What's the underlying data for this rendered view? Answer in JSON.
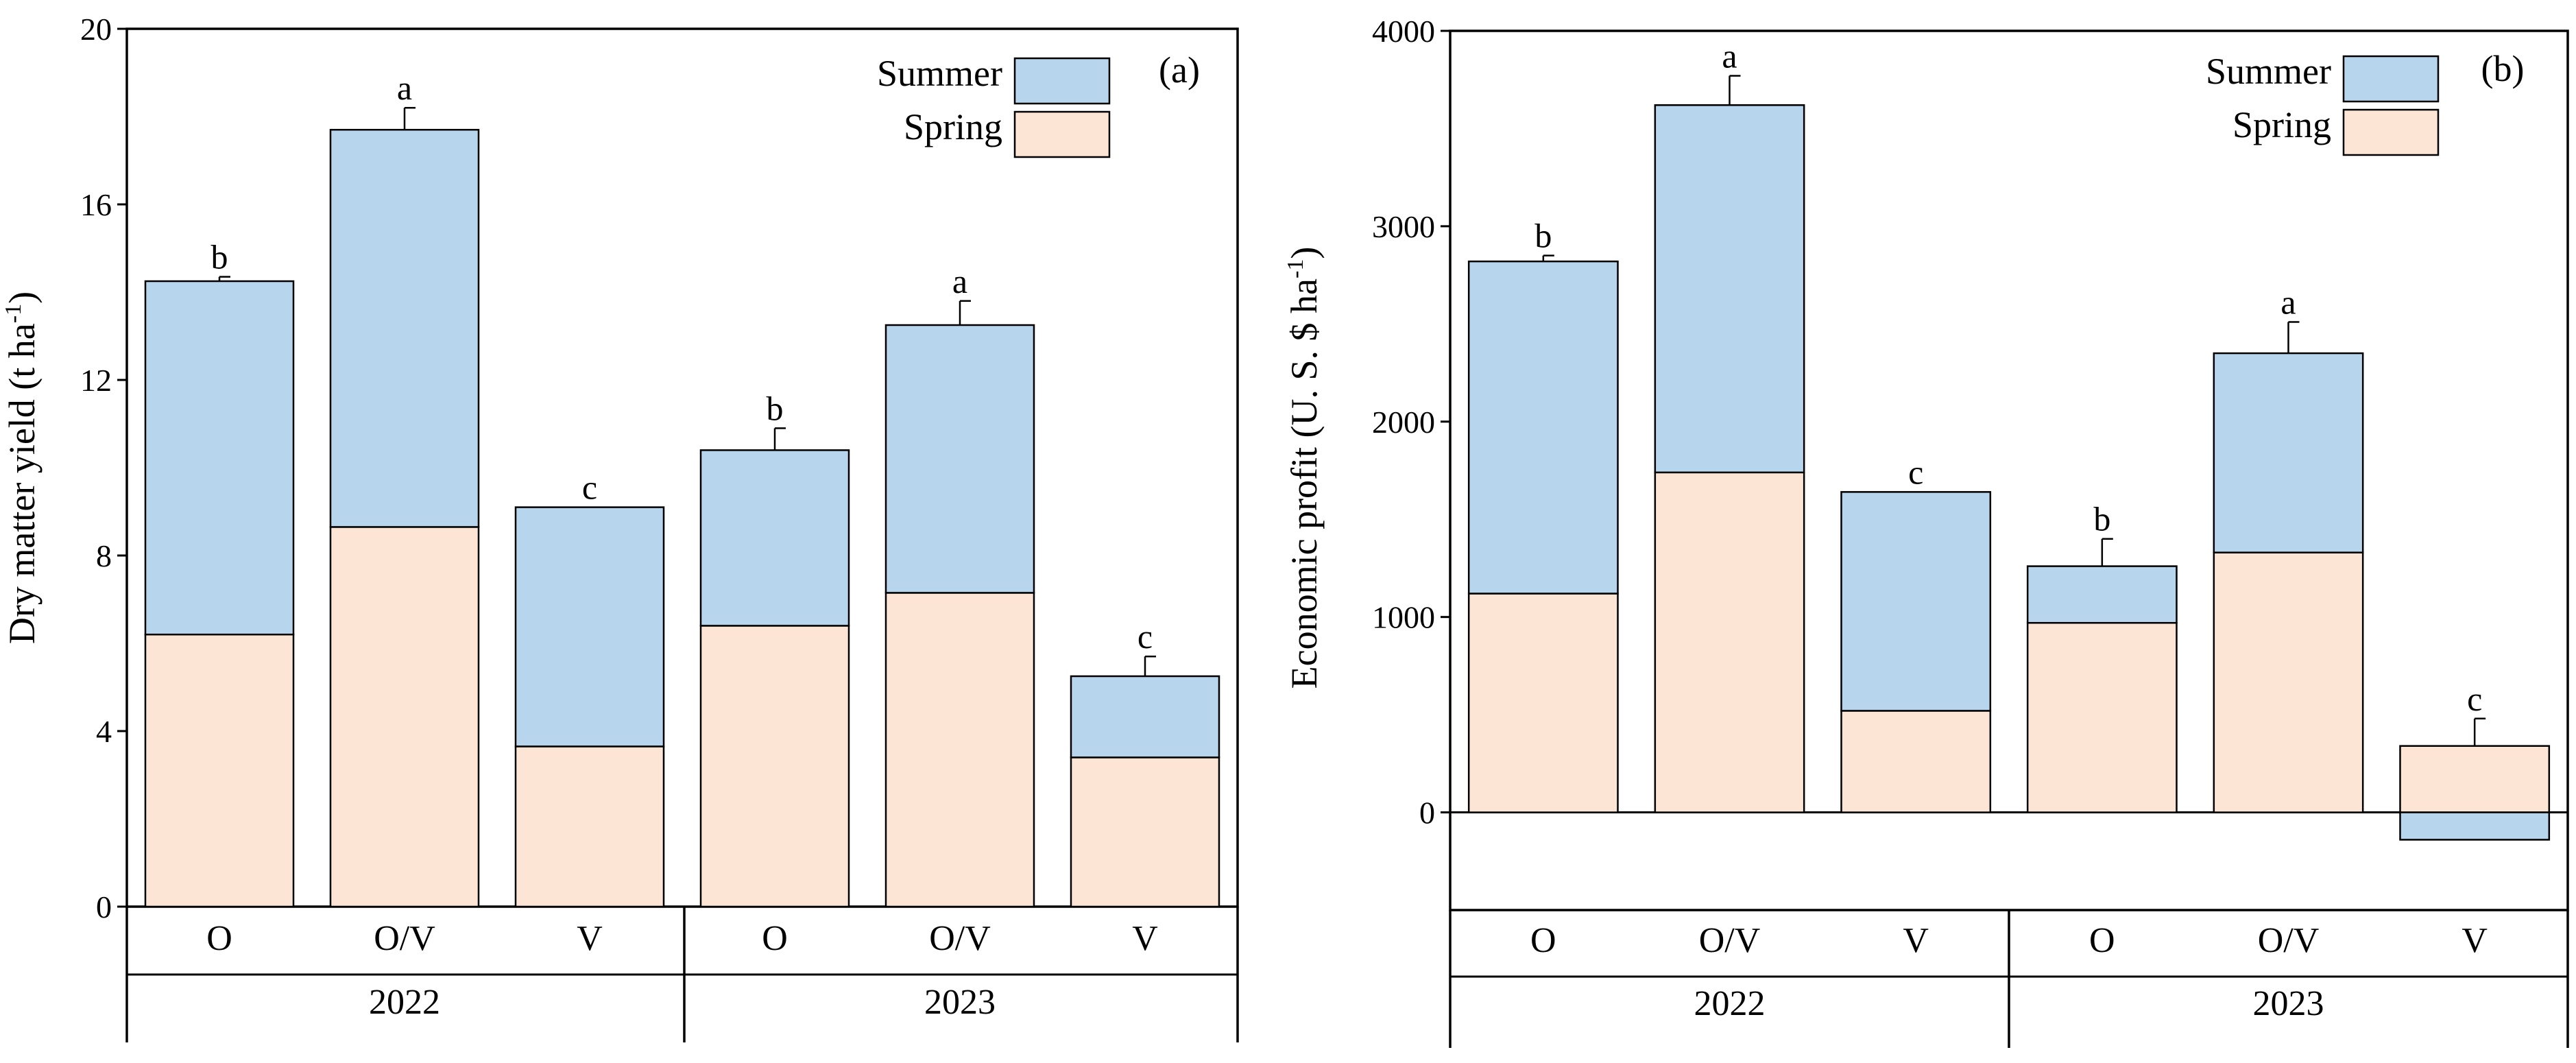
{
  "chart_data": [
    {
      "panel": "(a)",
      "type": "bar",
      "stacked": true,
      "ylabel": "Dry matter yield (t ha",
      "ylabel_sup": "-1",
      "ylabel_end": ")",
      "ylim": [
        0,
        20
      ],
      "yticks": [
        0,
        4,
        8,
        12,
        16,
        20
      ],
      "categories": [
        "O",
        "O/V",
        "V",
        "O",
        "O/V",
        "V"
      ],
      "groups": [
        {
          "label": "2022",
          "span": [
            0,
            2
          ]
        },
        {
          "label": "2023",
          "span": [
            3,
            5
          ]
        }
      ],
      "series": [
        {
          "name": "Spring",
          "values": [
            6.2,
            8.65,
            3.65,
            6.4,
            7.15,
            3.4
          ]
        },
        {
          "name": "Summer",
          "values": [
            8.05,
            9.05,
            5.45,
            4.0,
            6.1,
            1.85
          ]
        }
      ],
      "error": [
        0.1,
        0.5,
        0.0,
        0.5,
        0.55,
        0.45
      ],
      "letters": [
        "b",
        "a",
        "c",
        "b",
        "a",
        "c"
      ],
      "legend": {
        "position": "top-right",
        "entries": [
          "Summer",
          "Spring"
        ]
      }
    },
    {
      "panel": "(b)",
      "type": "bar",
      "stacked": true,
      "ylabel": "Economic profit (U. S. $ ha",
      "ylabel_sup": "-1",
      "ylabel_end": ")",
      "ylim": [
        -500,
        4000
      ],
      "yticks": [
        0,
        1000,
        2000,
        3000,
        4000
      ],
      "categories": [
        "O",
        "O/V",
        "V",
        "O",
        "O/V",
        "V"
      ],
      "groups": [
        {
          "label": "2022",
          "span": [
            0,
            2
          ]
        },
        {
          "label": "2023",
          "span": [
            3,
            5
          ]
        }
      ],
      "series": [
        {
          "name": "Spring",
          "values": [
            1120,
            1740,
            520,
            970,
            1330,
            340
          ]
        },
        {
          "name": "Summer",
          "values": [
            1700,
            1880,
            1120,
            290,
            1020,
            -140
          ]
        }
      ],
      "error": [
        30,
        150,
        0,
        140,
        160,
        140
      ],
      "letters": [
        "b",
        "a",
        "c",
        "b",
        "a",
        "c"
      ],
      "legend": {
        "position": "top-right",
        "entries": [
          "Summer",
          "Spring"
        ]
      }
    }
  ],
  "colors": {
    "Summer": "#b8d5ee",
    "Spring": "#fde5d6"
  }
}
